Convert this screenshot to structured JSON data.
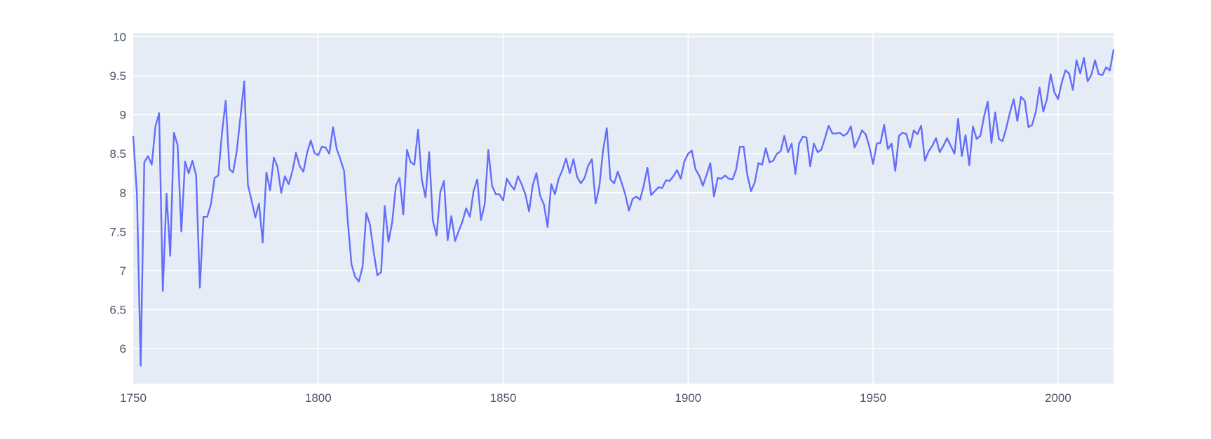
{
  "colors": {
    "plot_background": "#e5ecf6",
    "line": "#636efa",
    "grid": "#ffffff",
    "tick_text": "#4a5568"
  },
  "chart_data": {
    "type": "line",
    "title": "",
    "xlabel": "",
    "ylabel": "",
    "xlim": [
      1750,
      2015
    ],
    "ylim": [
      5.55,
      10.05
    ],
    "grid": true,
    "legend": "none",
    "x_ticks": [
      {
        "value": 1750,
        "label": "1750"
      },
      {
        "value": 1800,
        "label": "1800"
      },
      {
        "value": 1850,
        "label": "1850"
      },
      {
        "value": 1900,
        "label": "1900"
      },
      {
        "value": 1950,
        "label": "1950"
      },
      {
        "value": 2000,
        "label": "2000"
      }
    ],
    "y_ticks": [
      {
        "value": 6,
        "label": "6"
      },
      {
        "value": 6.5,
        "label": "6.5"
      },
      {
        "value": 7,
        "label": "7"
      },
      {
        "value": 7.5,
        "label": "7.5"
      },
      {
        "value": 8,
        "label": "8"
      },
      {
        "value": 8.5,
        "label": "8.5"
      },
      {
        "value": 9,
        "label": "9"
      },
      {
        "value": 9.5,
        "label": "9.5"
      },
      {
        "value": 10,
        "label": "10"
      }
    ],
    "series": [
      {
        "x": [
          1750,
          1751,
          1752,
          1753,
          1754,
          1755,
          1756,
          1757,
          1758,
          1759,
          1760,
          1761,
          1762,
          1763,
          1764,
          1765,
          1766,
          1767,
          1768,
          1769,
          1770,
          1771,
          1772,
          1773,
          1774,
          1775,
          1776,
          1777,
          1778,
          1779,
          1780,
          1781,
          1782,
          1783,
          1784,
          1785,
          1786,
          1787,
          1788,
          1789,
          1790,
          1791,
          1792,
          1793,
          1794,
          1795,
          1796,
          1797,
          1798,
          1799,
          1800,
          1801,
          1802,
          1803,
          1804,
          1805,
          1806,
          1807,
          1808,
          1809,
          1810,
          1811,
          1812,
          1813,
          1814,
          1815,
          1816,
          1817,
          1818,
          1819,
          1820,
          1821,
          1822,
          1823,
          1824,
          1825,
          1826,
          1827,
          1828,
          1829,
          1830,
          1831,
          1832,
          1833,
          1834,
          1835,
          1836,
          1837,
          1838,
          1839,
          1840,
          1841,
          1842,
          1843,
          1844,
          1845,
          1846,
          1847,
          1848,
          1849,
          1850,
          1851,
          1852,
          1853,
          1854,
          1855,
          1856,
          1857,
          1858,
          1859,
          1860,
          1861,
          1862,
          1863,
          1864,
          1865,
          1866,
          1867,
          1868,
          1869,
          1870,
          1871,
          1872,
          1873,
          1874,
          1875,
          1876,
          1877,
          1878,
          1879,
          1880,
          1881,
          1882,
          1883,
          1884,
          1885,
          1886,
          1887,
          1888,
          1889,
          1890,
          1891,
          1892,
          1893,
          1894,
          1895,
          1896,
          1897,
          1898,
          1899,
          1900,
          1901,
          1902,
          1903,
          1904,
          1905,
          1906,
          1907,
          1908,
          1909,
          1910,
          1911,
          1912,
          1913,
          1914,
          1915,
          1916,
          1917,
          1918,
          1919,
          1920,
          1921,
          1922,
          1923,
          1924,
          1925,
          1926,
          1927,
          1928,
          1929,
          1930,
          1931,
          1932,
          1933,
          1934,
          1935,
          1936,
          1937,
          1938,
          1939,
          1940,
          1941,
          1942,
          1943,
          1944,
          1945,
          1946,
          1947,
          1948,
          1949,
          1950,
          1951,
          1952,
          1953,
          1954,
          1955,
          1956,
          1957,
          1958,
          1959,
          1960,
          1961,
          1962,
          1963,
          1964,
          1965,
          1966,
          1967,
          1968,
          1969,
          1970,
          1971,
          1972,
          1973,
          1974,
          1975,
          1976,
          1977,
          1978,
          1979,
          1980,
          1981,
          1982,
          1983,
          1984,
          1985,
          1986,
          1987,
          1988,
          1989,
          1990,
          1991,
          1992,
          1993,
          1994,
          1995,
          1996,
          1997,
          1998,
          1999,
          2000,
          2001,
          2002,
          2003,
          2004,
          2005,
          2006,
          2007,
          2008,
          2009,
          2010,
          2011,
          2012,
          2013,
          2014,
          2015
        ],
        "y": [
          8.72,
          7.98,
          5.78,
          8.39,
          8.47,
          8.36,
          8.85,
          9.02,
          6.74,
          7.99,
          7.19,
          8.77,
          8.61,
          7.5,
          8.4,
          8.25,
          8.41,
          8.22,
          6.78,
          7.69,
          7.69,
          7.85,
          8.19,
          8.22,
          8.77,
          9.18,
          8.3,
          8.26,
          8.54,
          8.98,
          9.43,
          8.1,
          7.9,
          7.68,
          7.86,
          7.36,
          8.26,
          8.03,
          8.45,
          8.33,
          8.0,
          8.21,
          8.11,
          8.27,
          8.51,
          8.34,
          8.27,
          8.51,
          8.67,
          8.51,
          8.48,
          8.59,
          8.58,
          8.5,
          8.84,
          8.56,
          8.43,
          8.28,
          7.63,
          7.08,
          6.92,
          6.86,
          7.05,
          7.74,
          7.59,
          7.24,
          6.94,
          6.98,
          7.83,
          7.37,
          7.62,
          8.09,
          8.19,
          7.72,
          8.55,
          8.39,
          8.36,
          8.81,
          8.17,
          7.94,
          8.52,
          7.64,
          7.45,
          8.01,
          8.15,
          7.39,
          7.7,
          7.38,
          7.51,
          7.63,
          7.8,
          7.69,
          8.02,
          8.17,
          7.65,
          7.85,
          8.55,
          8.09,
          7.98,
          7.98,
          7.9,
          8.18,
          8.1,
          8.04,
          8.21,
          8.11,
          7.98,
          7.76,
          8.1,
          8.25,
          7.96,
          7.85,
          7.56,
          8.11,
          7.98,
          8.18,
          8.29,
          8.44,
          8.25,
          8.43,
          8.2,
          8.12,
          8.19,
          8.35,
          8.43,
          7.86,
          8.08,
          8.54,
          8.83,
          8.17,
          8.12,
          8.27,
          8.13,
          7.98,
          7.77,
          7.92,
          7.95,
          7.91,
          8.09,
          8.32,
          7.97,
          8.02,
          8.07,
          8.06,
          8.16,
          8.15,
          8.21,
          8.29,
          8.18,
          8.4,
          8.5,
          8.54,
          8.3,
          8.22,
          8.09,
          8.23,
          8.38,
          7.95,
          8.19,
          8.18,
          8.22,
          8.18,
          8.17,
          8.3,
          8.59,
          8.59,
          8.23,
          8.02,
          8.13,
          8.38,
          8.36,
          8.57,
          8.39,
          8.41,
          8.5,
          8.53,
          8.73,
          8.52,
          8.63,
          8.24,
          8.63,
          8.72,
          8.71,
          8.34,
          8.63,
          8.52,
          8.55,
          8.7,
          8.86,
          8.76,
          8.76,
          8.77,
          8.73,
          8.76,
          8.85,
          8.58,
          8.68,
          8.8,
          8.75,
          8.59,
          8.37,
          8.63,
          8.64,
          8.87,
          8.56,
          8.63,
          8.28,
          8.73,
          8.77,
          8.75,
          8.58,
          8.8,
          8.75,
          8.86,
          8.41,
          8.53,
          8.6,
          8.7,
          8.52,
          8.6,
          8.7,
          8.6,
          8.5,
          8.95,
          8.47,
          8.74,
          8.35,
          8.85,
          8.69,
          8.73,
          8.98,
          9.17,
          8.64,
          9.03,
          8.69,
          8.66,
          8.83,
          9.03,
          9.2,
          8.92,
          9.23,
          9.18,
          8.84,
          8.87,
          9.04,
          9.35,
          9.04,
          9.2,
          9.52,
          9.29,
          9.2,
          9.41,
          9.57,
          9.53,
          9.32,
          9.7,
          9.53,
          9.73,
          9.43,
          9.51,
          9.7,
          9.52,
          9.51,
          9.61,
          9.57,
          9.83
        ]
      }
    ]
  }
}
